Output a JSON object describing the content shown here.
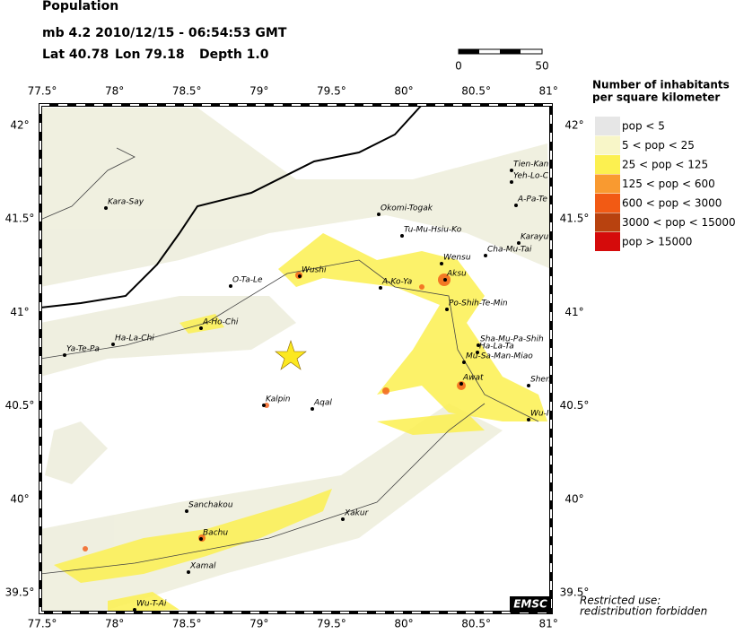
{
  "header": {
    "title": "Population",
    "event": "mb 4.2  2010/12/15 - 06:54:53 GMT",
    "lat": "Lat 40.78",
    "lon": "Lon 79.18",
    "depth": "Depth 1.0"
  },
  "scale": {
    "start": "0",
    "end": "50"
  },
  "axes": {
    "lon": [
      "77.5°",
      "78°",
      "78.5°",
      "79°",
      "79.5°",
      "80°",
      "80.5°",
      "81°"
    ],
    "lat": [
      "42°",
      "41.5°",
      "41°",
      "40.5°",
      "40°",
      "39.5°"
    ]
  },
  "legend": {
    "title_line1": "Number of inhabitants",
    "title_line2": "per square kilometer",
    "items": [
      {
        "label": "pop < 5",
        "color": "#e6e6e6"
      },
      {
        "label": "5 < pop < 25",
        "color": "#f8f6c8"
      },
      {
        "label": "25 < pop < 125",
        "color": "#fcf050"
      },
      {
        "label": "125 < pop < 600",
        "color": "#f99a30"
      },
      {
        "label": "600 < pop < 3000",
        "color": "#f25a14"
      },
      {
        "label": "3000 < pop < 15000",
        "color": "#b8420f"
      },
      {
        "label": "pop > 15000",
        "color": "#d50b0b"
      }
    ]
  },
  "cities": [
    {
      "name": "Kara-Say"
    },
    {
      "name": "Tien-Kan"
    },
    {
      "name": "Yeh-Lo-C"
    },
    {
      "name": "A-Pa-Te"
    },
    {
      "name": "Okomi-Togak"
    },
    {
      "name": "Tu-Mu-Hsiu-Ko"
    },
    {
      "name": "Karayu"
    },
    {
      "name": "Cha-Mu-Tai"
    },
    {
      "name": "Wensu"
    },
    {
      "name": "Aksu"
    },
    {
      "name": "O-Ta-Le"
    },
    {
      "name": "Wushi"
    },
    {
      "name": "A-Ko-Ya"
    },
    {
      "name": "Po-Shih-Te-Min"
    },
    {
      "name": "A-Ho-Chi"
    },
    {
      "name": "Ha-La-Chi"
    },
    {
      "name": "Ya-Te-Pa"
    },
    {
      "name": "Sha-Mu-Pa-Shih"
    },
    {
      "name": "Ha-La-Ta"
    },
    {
      "name": "Mu-Sa-Man-Miao"
    },
    {
      "name": "Awat"
    },
    {
      "name": "Shen"
    },
    {
      "name": "Kalpin"
    },
    {
      "name": "Aqal"
    },
    {
      "name": "Wu-I"
    },
    {
      "name": "Sanchakou"
    },
    {
      "name": "Xakur"
    },
    {
      "name": "Bachu"
    },
    {
      "name": "Xamal"
    },
    {
      "name": "Wu-T-Ai"
    }
  ],
  "logo": "EMSC",
  "notice": {
    "line1": "Restricted use:",
    "line2": "redistribution forbidden"
  }
}
